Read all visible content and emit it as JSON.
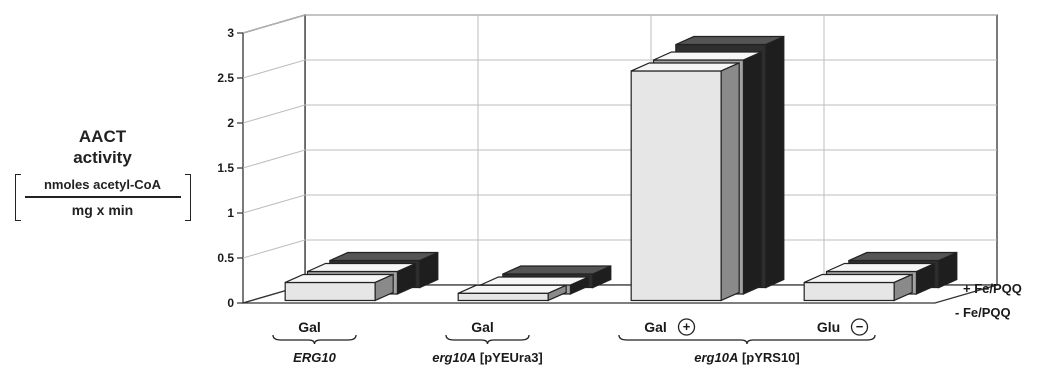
{
  "chart_data": {
    "type": "bar",
    "ylabel_line1": "AACT",
    "ylabel_line2": "activity",
    "unit_numerator": "nmoles acetyl-CoA",
    "unit_denominator": "mg  x  min",
    "yticks": [
      "0",
      "0.5",
      "1",
      "1.5",
      "2",
      "2.5",
      "3"
    ],
    "ylim": [
      0,
      3
    ],
    "categories": [
      "Gal",
      "Gal",
      "Gal",
      "Glu"
    ],
    "category_marks": [
      "",
      "",
      "+",
      "−"
    ],
    "groups": [
      {
        "label": "ERG10",
        "italic_part": "ERG10",
        "plain_part": "",
        "from": 0,
        "to": 0
      },
      {
        "label": "erg10A [pYEUra3]",
        "italic_part": "erg10A",
        "plain_part": " [pYEUra3]",
        "from": 1,
        "to": 1
      },
      {
        "label": "erg10A [pYRS10]",
        "italic_part": "erg10A",
        "plain_part": " [pYRS10]",
        "from": 2,
        "to": 3
      }
    ],
    "series": [
      {
        "name": "- Fe/PQQ",
        "values": [
          0.2,
          0.08,
          2.55,
          0.2
        ]
      },
      {
        "name": "+ Fe/PQQ",
        "values": [
          0.25,
          0.1,
          2.6,
          0.25
        ]
      },
      {
        "values": [
          0.3,
          0.15,
          2.7,
          0.3
        ]
      }
    ],
    "colors": [
      "#e6e6e6",
      "#a3a3a3",
      "#2e2e2e"
    ],
    "grid": true
  }
}
